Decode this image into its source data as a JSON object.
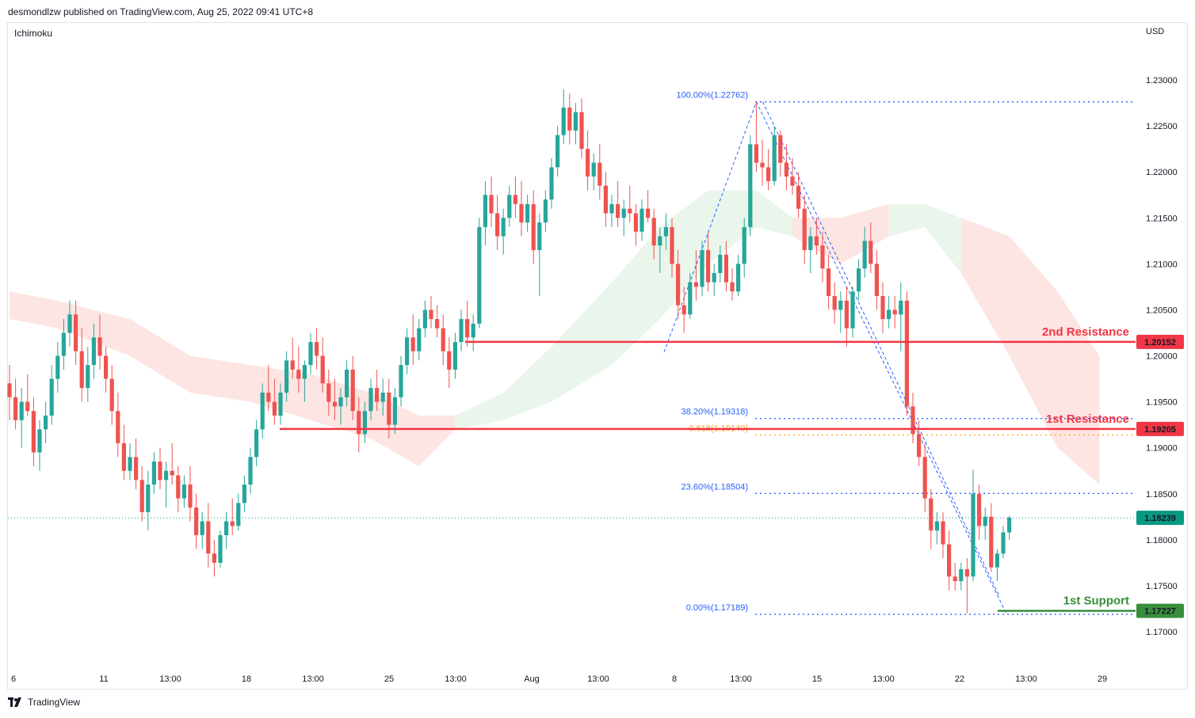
{
  "header": {
    "publisher_line": "desmondlzw published on TradingView.com, Aug 25, 2022 09:41 UTC+8"
  },
  "indicator": {
    "name": "Ichimoku"
  },
  "axis": {
    "currency": "USD"
  },
  "footer": {
    "brand": "TradingView"
  },
  "colors": {
    "up": "#26a69a",
    "down": "#ef5350",
    "resistance": "#f23645",
    "support": "#388e3c",
    "fib": "#2962ff",
    "golden": "#f9a825",
    "cloud_bear": "#fde2e0",
    "cloud_bull": "#e8f5e9",
    "price_badge": "#089981"
  },
  "chart_data": {
    "type": "candlestick",
    "yticks": [
      "1.23000",
      "1.22500",
      "1.22000",
      "1.21500",
      "1.21000",
      "1.20500",
      "1.20000",
      "1.19500",
      "1.19000",
      "1.18500",
      "1.18000",
      "1.17500",
      "1.17000"
    ],
    "xticks": [
      "6",
      "11",
      "13:00",
      "18",
      "13:00",
      "25",
      "13:00",
      "Aug",
      "13:00",
      "8",
      "13:00",
      "15",
      "13:00",
      "22",
      "13:00",
      "29"
    ],
    "ylim": [
      1.1685,
      1.2305
    ],
    "horizontal_levels": [
      {
        "name": "2nd Resistance",
        "value": 1.20152,
        "badge": "1.20152",
        "kind": "resistance"
      },
      {
        "name": "1st Resistance",
        "value": 1.19205,
        "badge": "1.19205",
        "kind": "resistance"
      },
      {
        "name": "1st Support",
        "value": 1.17227,
        "badge": "1.17227",
        "kind": "support"
      }
    ],
    "current_price": {
      "value": 1.18239,
      "badge": "1.18239"
    },
    "fibonacci": [
      {
        "label": "100.00%(1.22762)",
        "value": 1.22762,
        "kind": "fib"
      },
      {
        "label": "38.20%(1.19318)",
        "value": 1.19318,
        "kind": "fib"
      },
      {
        "label": "0.618(1.19140)",
        "value": 1.1914,
        "kind": "golden"
      },
      {
        "label": "23.60%(1.18504)",
        "value": 1.18504,
        "kind": "fib"
      },
      {
        "label": "0.00%(1.17189)",
        "value": 1.17189,
        "kind": "fib"
      }
    ],
    "candles_ohlc": [
      [
        1.197,
        1.199,
        1.193,
        1.1955
      ],
      [
        1.1955,
        1.1975,
        1.192,
        1.193
      ],
      [
        1.193,
        1.1965,
        1.19,
        1.195
      ],
      [
        1.195,
        1.198,
        1.1935,
        1.194
      ],
      [
        1.194,
        1.1955,
        1.188,
        1.1895
      ],
      [
        1.1895,
        1.193,
        1.1875,
        1.192
      ],
      [
        1.192,
        1.195,
        1.1905,
        1.1935
      ],
      [
        1.1935,
        1.199,
        1.1925,
        1.1975
      ],
      [
        1.1975,
        1.2015,
        1.196,
        1.2
      ],
      [
        1.2,
        1.204,
        1.1985,
        1.2025
      ],
      [
        1.2025,
        1.206,
        1.201,
        1.2045
      ],
      [
        1.2045,
        1.206,
        1.199,
        1.2005
      ],
      [
        1.2005,
        1.203,
        1.195,
        1.1965
      ],
      [
        1.1965,
        1.201,
        1.195,
        1.199
      ],
      [
        1.199,
        1.2035,
        1.1975,
        1.202
      ],
      [
        1.202,
        1.2045,
        1.1985,
        1.2
      ],
      [
        1.2,
        1.201,
        1.196,
        1.1975
      ],
      [
        1.1975,
        1.199,
        1.1925,
        1.194
      ],
      [
        1.194,
        1.196,
        1.189,
        1.1905
      ],
      [
        1.1905,
        1.1925,
        1.1865,
        1.1875
      ],
      [
        1.1875,
        1.1905,
        1.1865,
        1.189
      ],
      [
        1.189,
        1.191,
        1.1855,
        1.1865
      ],
      [
        1.1865,
        1.188,
        1.182,
        1.183
      ],
      [
        1.183,
        1.1875,
        1.181,
        1.186
      ],
      [
        1.186,
        1.1895,
        1.185,
        1.1885
      ],
      [
        1.1885,
        1.19,
        1.1855,
        1.1865
      ],
      [
        1.1865,
        1.1885,
        1.1835,
        1.1875
      ],
      [
        1.1875,
        1.1905,
        1.186,
        1.187
      ],
      [
        1.187,
        1.188,
        1.183,
        1.1845
      ],
      [
        1.1845,
        1.187,
        1.1835,
        1.186
      ],
      [
        1.186,
        1.188,
        1.182,
        1.1835
      ],
      [
        1.1835,
        1.185,
        1.179,
        1.1805
      ],
      [
        1.1805,
        1.183,
        1.179,
        1.182
      ],
      [
        1.182,
        1.184,
        1.177,
        1.1785
      ],
      [
        1.1785,
        1.18,
        1.176,
        1.1775
      ],
      [
        1.1775,
        1.181,
        1.177,
        1.1805
      ],
      [
        1.1805,
        1.183,
        1.179,
        1.182
      ],
      [
        1.182,
        1.1845,
        1.1805,
        1.1815
      ],
      [
        1.1815,
        1.185,
        1.181,
        1.184
      ],
      [
        1.184,
        1.187,
        1.183,
        1.186
      ],
      [
        1.186,
        1.19,
        1.185,
        1.189
      ],
      [
        1.189,
        1.193,
        1.188,
        1.192
      ],
      [
        1.192,
        1.197,
        1.191,
        1.196
      ],
      [
        1.196,
        1.199,
        1.194,
        1.195
      ],
      [
        1.195,
        1.1975,
        1.1925,
        1.1935
      ],
      [
        1.1935,
        1.197,
        1.1925,
        1.196
      ],
      [
        1.196,
        1.2005,
        1.195,
        1.1995
      ],
      [
        1.1995,
        1.202,
        1.1975,
        1.1985
      ],
      [
        1.1985,
        1.201,
        1.196,
        1.1975
      ],
      [
        1.1975,
        1.1995,
        1.195,
        1.199
      ],
      [
        1.199,
        1.2025,
        1.198,
        1.2015
      ],
      [
        1.2015,
        1.203,
        1.1985,
        1.2
      ],
      [
        1.2,
        1.202,
        1.196,
        1.197
      ],
      [
        1.197,
        1.1985,
        1.1935,
        1.195
      ],
      [
        1.195,
        1.1975,
        1.193,
        1.1945
      ],
      [
        1.1945,
        1.1965,
        1.1925,
        1.1955
      ],
      [
        1.1955,
        1.1995,
        1.1945,
        1.1985
      ],
      [
        1.1985,
        1.2,
        1.193,
        1.194
      ],
      [
        1.194,
        1.1955,
        1.1895,
        1.1915
      ],
      [
        1.1915,
        1.195,
        1.1905,
        1.194
      ],
      [
        1.194,
        1.1975,
        1.193,
        1.1965
      ],
      [
        1.1965,
        1.1985,
        1.194,
        1.195
      ],
      [
        1.195,
        1.1975,
        1.1935,
        1.196
      ],
      [
        1.196,
        1.1975,
        1.191,
        1.1925
      ],
      [
        1.1925,
        1.1965,
        1.1915,
        1.1955
      ],
      [
        1.1955,
        1.2,
        1.1945,
        1.199
      ],
      [
        1.199,
        1.203,
        1.198,
        1.202
      ],
      [
        1.202,
        1.2045,
        1.199,
        1.2005
      ],
      [
        1.2005,
        1.204,
        1.1995,
        1.203
      ],
      [
        1.203,
        1.206,
        1.202,
        1.205
      ],
      [
        1.205,
        1.2065,
        1.203,
        1.204
      ],
      [
        1.204,
        1.2055,
        1.202,
        1.203
      ],
      [
        1.203,
        1.2045,
        1.199,
        1.2005
      ],
      [
        1.2005,
        1.202,
        1.1965,
        1.1985
      ],
      [
        1.1985,
        1.2025,
        1.1975,
        1.2015
      ],
      [
        1.2015,
        1.205,
        1.2005,
        1.204
      ],
      [
        1.204,
        1.206,
        1.201,
        1.202
      ],
      [
        1.202,
        1.2045,
        1.2005,
        1.2035
      ],
      [
        1.2035,
        1.215,
        1.203,
        1.214
      ],
      [
        1.214,
        1.219,
        1.212,
        1.2175
      ],
      [
        1.2175,
        1.2195,
        1.214,
        1.2155
      ],
      [
        1.2155,
        1.2175,
        1.2115,
        1.213
      ],
      [
        1.213,
        1.216,
        1.211,
        1.215
      ],
      [
        1.215,
        1.2185,
        1.214,
        1.2175
      ],
      [
        1.2175,
        1.2195,
        1.215,
        1.2165
      ],
      [
        1.2165,
        1.219,
        1.213,
        1.2145
      ],
      [
        1.2145,
        1.2175,
        1.2135,
        1.2165
      ],
      [
        1.2165,
        1.218,
        1.21,
        1.2115
      ],
      [
        1.2115,
        1.2155,
        1.2065,
        1.2145
      ],
      [
        1.2145,
        1.218,
        1.2135,
        1.217
      ],
      [
        1.217,
        1.2215,
        1.216,
        1.2205
      ],
      [
        1.2205,
        1.225,
        1.2195,
        1.224
      ],
      [
        1.224,
        1.229,
        1.223,
        1.227
      ],
      [
        1.227,
        1.2285,
        1.223,
        1.2245
      ],
      [
        1.2245,
        1.2275,
        1.223,
        1.2265
      ],
      [
        1.2265,
        1.228,
        1.2215,
        1.2225
      ],
      [
        1.2225,
        1.2245,
        1.218,
        1.2195
      ],
      [
        1.2195,
        1.222,
        1.218,
        1.221
      ],
      [
        1.221,
        1.223,
        1.217,
        1.2185
      ],
      [
        1.2185,
        1.22,
        1.214,
        1.2155
      ],
      [
        1.2155,
        1.2175,
        1.214,
        1.2165
      ],
      [
        1.2165,
        1.219,
        1.214,
        1.215
      ],
      [
        1.215,
        1.217,
        1.213,
        1.216
      ],
      [
        1.216,
        1.2185,
        1.2145,
        1.2155
      ],
      [
        1.2155,
        1.2165,
        1.212,
        1.2135
      ],
      [
        1.2135,
        1.217,
        1.2125,
        1.216
      ],
      [
        1.216,
        1.218,
        1.2145,
        1.215
      ],
      [
        1.215,
        1.216,
        1.2105,
        1.212
      ],
      [
        1.212,
        1.214,
        1.209,
        1.213
      ],
      [
        1.213,
        1.2155,
        1.2115,
        1.214
      ],
      [
        1.214,
        1.215,
        1.2085,
        1.21
      ],
      [
        1.21,
        1.2115,
        1.204,
        1.2055
      ],
      [
        1.2055,
        1.2075,
        1.2025,
        1.2045
      ],
      [
        1.2045,
        1.209,
        1.204,
        1.208
      ],
      [
        1.208,
        1.2115,
        1.206,
        1.2075
      ],
      [
        1.2075,
        1.2125,
        1.2065,
        1.2115
      ],
      [
        1.2115,
        1.2135,
        1.207,
        1.208
      ],
      [
        1.208,
        1.21,
        1.2065,
        1.209
      ],
      [
        1.209,
        1.212,
        1.208,
        1.211
      ],
      [
        1.211,
        1.2125,
        1.207,
        1.208
      ],
      [
        1.208,
        1.2095,
        1.206,
        1.207
      ],
      [
        1.207,
        1.211,
        1.2065,
        1.21
      ],
      [
        1.21,
        1.215,
        1.2085,
        1.214
      ],
      [
        1.214,
        1.224,
        1.213,
        1.223
      ],
      [
        1.223,
        1.2276,
        1.22,
        1.221
      ],
      [
        1.221,
        1.2235,
        1.2185,
        1.2205
      ],
      [
        1.2205,
        1.2225,
        1.218,
        1.219
      ],
      [
        1.219,
        1.225,
        1.2185,
        1.224
      ],
      [
        1.224,
        1.2245,
        1.2195,
        1.221
      ],
      [
        1.221,
        1.223,
        1.218,
        1.2195
      ],
      [
        1.2195,
        1.2215,
        1.2175,
        1.2185
      ],
      [
        1.2185,
        1.22,
        1.215,
        1.216
      ],
      [
        1.216,
        1.2175,
        1.21,
        1.2115
      ],
      [
        1.2115,
        1.214,
        1.209,
        1.213
      ],
      [
        1.213,
        1.215,
        1.211,
        1.212
      ],
      [
        1.212,
        1.2135,
        1.208,
        1.2095
      ],
      [
        1.2095,
        1.211,
        1.205,
        1.2065
      ],
      [
        1.2065,
        1.208,
        1.2035,
        1.205
      ],
      [
        1.205,
        1.207,
        1.2025,
        1.206
      ],
      [
        1.206,
        1.2075,
        1.201,
        1.203
      ],
      [
        1.203,
        1.2075,
        1.202,
        1.207
      ],
      [
        1.207,
        1.2105,
        1.206,
        1.2095
      ],
      [
        1.2095,
        1.214,
        1.2085,
        1.2125
      ],
      [
        1.2125,
        1.2145,
        1.209,
        1.21
      ],
      [
        1.21,
        1.2115,
        1.205,
        1.2065
      ],
      [
        1.2065,
        1.208,
        1.2025,
        1.204
      ],
      [
        1.204,
        1.2065,
        1.203,
        1.205
      ],
      [
        1.205,
        1.2065,
        1.203,
        1.2045
      ],
      [
        1.2045,
        1.208,
        1.2005,
        1.206
      ],
      [
        1.206,
        1.207,
        1.1935,
        1.1945
      ],
      [
        1.1945,
        1.196,
        1.1905,
        1.1915
      ],
      [
        1.1915,
        1.193,
        1.188,
        1.189
      ],
      [
        1.189,
        1.1905,
        1.183,
        1.1845
      ],
      [
        1.1845,
        1.1855,
        1.179,
        1.181
      ],
      [
        1.181,
        1.183,
        1.1795,
        1.182
      ],
      [
        1.182,
        1.183,
        1.178,
        1.1795
      ],
      [
        1.1795,
        1.181,
        1.1745,
        1.176
      ],
      [
        1.176,
        1.1775,
        1.1745,
        1.1755
      ],
      [
        1.1755,
        1.1775,
        1.1745,
        1.1768
      ],
      [
        1.1768,
        1.178,
        1.172,
        1.176
      ],
      [
        1.176,
        1.1876,
        1.1755,
        1.185
      ],
      [
        1.185,
        1.186,
        1.18,
        1.1815
      ],
      [
        1.1815,
        1.1835,
        1.18,
        1.1825
      ],
      [
        1.1825,
        1.184,
        1.1765,
        1.177
      ],
      [
        1.177,
        1.179,
        1.1755,
        1.1785
      ],
      [
        1.1785,
        1.1815,
        1.178,
        1.1808
      ],
      [
        1.1808,
        1.1826,
        1.18,
        1.1824
      ]
    ],
    "ichimoku_cloud": [
      [
        0,
        1.207,
        1.204,
        "bear"
      ],
      [
        8,
        1.206,
        1.203,
        "bear"
      ],
      [
        20,
        1.204,
        1.2,
        "bear"
      ],
      [
        30,
        1.2,
        1.196,
        "bear"
      ],
      [
        40,
        1.199,
        1.195,
        "bear"
      ],
      [
        50,
        1.198,
        1.193,
        "bear"
      ],
      [
        60,
        1.196,
        1.191,
        "bear"
      ],
      [
        68,
        1.1935,
        1.188,
        "bear"
      ],
      [
        74,
        1.1935,
        1.192,
        "bull"
      ],
      [
        82,
        1.196,
        1.193,
        "bull"
      ],
      [
        90,
        1.201,
        1.195,
        "bull"
      ],
      [
        100,
        1.208,
        1.199,
        "bull"
      ],
      [
        108,
        1.214,
        1.204,
        "bull"
      ],
      [
        116,
        1.218,
        1.21,
        "bull"
      ],
      [
        124,
        1.218,
        1.214,
        "bull"
      ],
      [
        130,
        1.215,
        1.213,
        "bear"
      ],
      [
        138,
        1.215,
        1.21,
        "bear"
      ],
      [
        146,
        1.2165,
        1.213,
        "bull"
      ],
      [
        152,
        1.2165,
        1.214,
        "bull"
      ],
      [
        158,
        1.215,
        1.209,
        "bear"
      ],
      [
        166,
        1.213,
        1.2,
        "bear"
      ],
      [
        174,
        1.207,
        1.19,
        "bear"
      ],
      [
        181,
        1.2,
        1.186,
        "bear"
      ]
    ]
  }
}
